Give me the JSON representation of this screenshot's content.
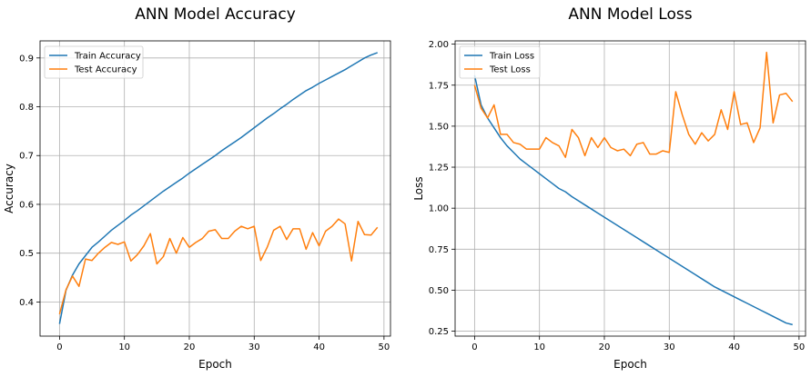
{
  "chart_data": [
    {
      "type": "line",
      "title": "ANN Model Accuracy",
      "xlabel": "Epoch",
      "ylabel": "Accuracy",
      "xlim": [
        -3,
        51
      ],
      "ylim": [
        0.33,
        0.935
      ],
      "xticks": [
        0,
        10,
        20,
        30,
        40,
        50
      ],
      "yticks": [
        0.4,
        0.5,
        0.6,
        0.7,
        0.8,
        0.9
      ],
      "ytick_labels": [
        "0.4",
        "0.5",
        "0.6",
        "0.7",
        "0.8",
        "0.9"
      ],
      "grid": true,
      "legend_position": "top-left",
      "x": [
        0,
        1,
        2,
        3,
        4,
        5,
        6,
        7,
        8,
        9,
        10,
        11,
        12,
        13,
        14,
        15,
        16,
        17,
        18,
        19,
        20,
        21,
        22,
        23,
        24,
        25,
        26,
        27,
        28,
        29,
        30,
        31,
        32,
        33,
        34,
        35,
        36,
        37,
        38,
        39,
        40,
        41,
        42,
        43,
        44,
        45,
        46,
        47,
        48,
        49
      ],
      "series": [
        {
          "name": "Train Accuracy",
          "color": "#1f77b4",
          "values": [
            0.355,
            0.424,
            0.455,
            0.478,
            0.495,
            0.512,
            0.523,
            0.535,
            0.547,
            0.557,
            0.567,
            0.578,
            0.587,
            0.597,
            0.607,
            0.617,
            0.627,
            0.636,
            0.645,
            0.654,
            0.664,
            0.673,
            0.682,
            0.691,
            0.7,
            0.71,
            0.719,
            0.728,
            0.737,
            0.747,
            0.757,
            0.767,
            0.777,
            0.786,
            0.796,
            0.805,
            0.815,
            0.824,
            0.833,
            0.84,
            0.848,
            0.855,
            0.862,
            0.869,
            0.876,
            0.884,
            0.892,
            0.9,
            0.906,
            0.911
          ]
        },
        {
          "name": "Test Accuracy",
          "color": "#ff7f0e",
          "values": [
            0.375,
            0.425,
            0.453,
            0.432,
            0.488,
            0.485,
            0.5,
            0.512,
            0.522,
            0.518,
            0.523,
            0.484,
            0.497,
            0.515,
            0.54,
            0.478,
            0.493,
            0.53,
            0.5,
            0.532,
            0.512,
            0.522,
            0.53,
            0.545,
            0.548,
            0.53,
            0.53,
            0.545,
            0.555,
            0.55,
            0.555,
            0.485,
            0.512,
            0.547,
            0.555,
            0.528,
            0.55,
            0.55,
            0.508,
            0.542,
            0.515,
            0.545,
            0.555,
            0.57,
            0.56,
            0.484,
            0.565,
            0.538,
            0.537,
            0.553
          ]
        }
      ]
    },
    {
      "type": "line",
      "title": "ANN Model Loss",
      "xlabel": "Epoch",
      "ylabel": "Loss",
      "xlim": [
        -3,
        51
      ],
      "ylim": [
        0.22,
        2.02
      ],
      "xticks": [
        0,
        10,
        20,
        30,
        40,
        50
      ],
      "yticks": [
        0.25,
        0.5,
        0.75,
        1.0,
        1.25,
        1.5,
        1.75,
        2.0
      ],
      "ytick_labels": [
        "0.25",
        "0.50",
        "0.75",
        "1.00",
        "1.25",
        "1.50",
        "1.75",
        "2.00"
      ],
      "grid": true,
      "legend_position": "top-left",
      "x": [
        0,
        1,
        2,
        3,
        4,
        5,
        6,
        7,
        8,
        9,
        10,
        11,
        12,
        13,
        14,
        15,
        16,
        17,
        18,
        19,
        20,
        21,
        22,
        23,
        24,
        25,
        26,
        27,
        28,
        29,
        30,
        31,
        32,
        33,
        34,
        35,
        36,
        37,
        38,
        39,
        40,
        41,
        42,
        43,
        44,
        45,
        46,
        47,
        48,
        49
      ],
      "series": [
        {
          "name": "Train Loss",
          "color": "#1f77b4",
          "values": [
            1.81,
            1.63,
            1.55,
            1.49,
            1.43,
            1.38,
            1.34,
            1.3,
            1.27,
            1.24,
            1.21,
            1.18,
            1.15,
            1.12,
            1.1,
            1.07,
            1.045,
            1.02,
            0.995,
            0.97,
            0.945,
            0.92,
            0.895,
            0.87,
            0.845,
            0.82,
            0.795,
            0.77,
            0.745,
            0.72,
            0.695,
            0.67,
            0.645,
            0.62,
            0.595,
            0.57,
            0.545,
            0.52,
            0.5,
            0.48,
            0.46,
            0.44,
            0.42,
            0.4,
            0.38,
            0.36,
            0.34,
            0.32,
            0.3,
            0.29
          ]
        },
        {
          "name": "Test Loss",
          "color": "#ff7f0e",
          "values": [
            1.75,
            1.61,
            1.55,
            1.63,
            1.45,
            1.45,
            1.4,
            1.39,
            1.36,
            1.36,
            1.36,
            1.43,
            1.4,
            1.38,
            1.31,
            1.48,
            1.43,
            1.32,
            1.43,
            1.37,
            1.43,
            1.37,
            1.35,
            1.36,
            1.32,
            1.39,
            1.4,
            1.33,
            1.33,
            1.35,
            1.34,
            1.71,
            1.57,
            1.45,
            1.39,
            1.46,
            1.41,
            1.45,
            1.6,
            1.48,
            1.71,
            1.51,
            1.52,
            1.4,
            1.49,
            1.95,
            1.52,
            1.69,
            1.7,
            1.65
          ]
        }
      ]
    }
  ]
}
